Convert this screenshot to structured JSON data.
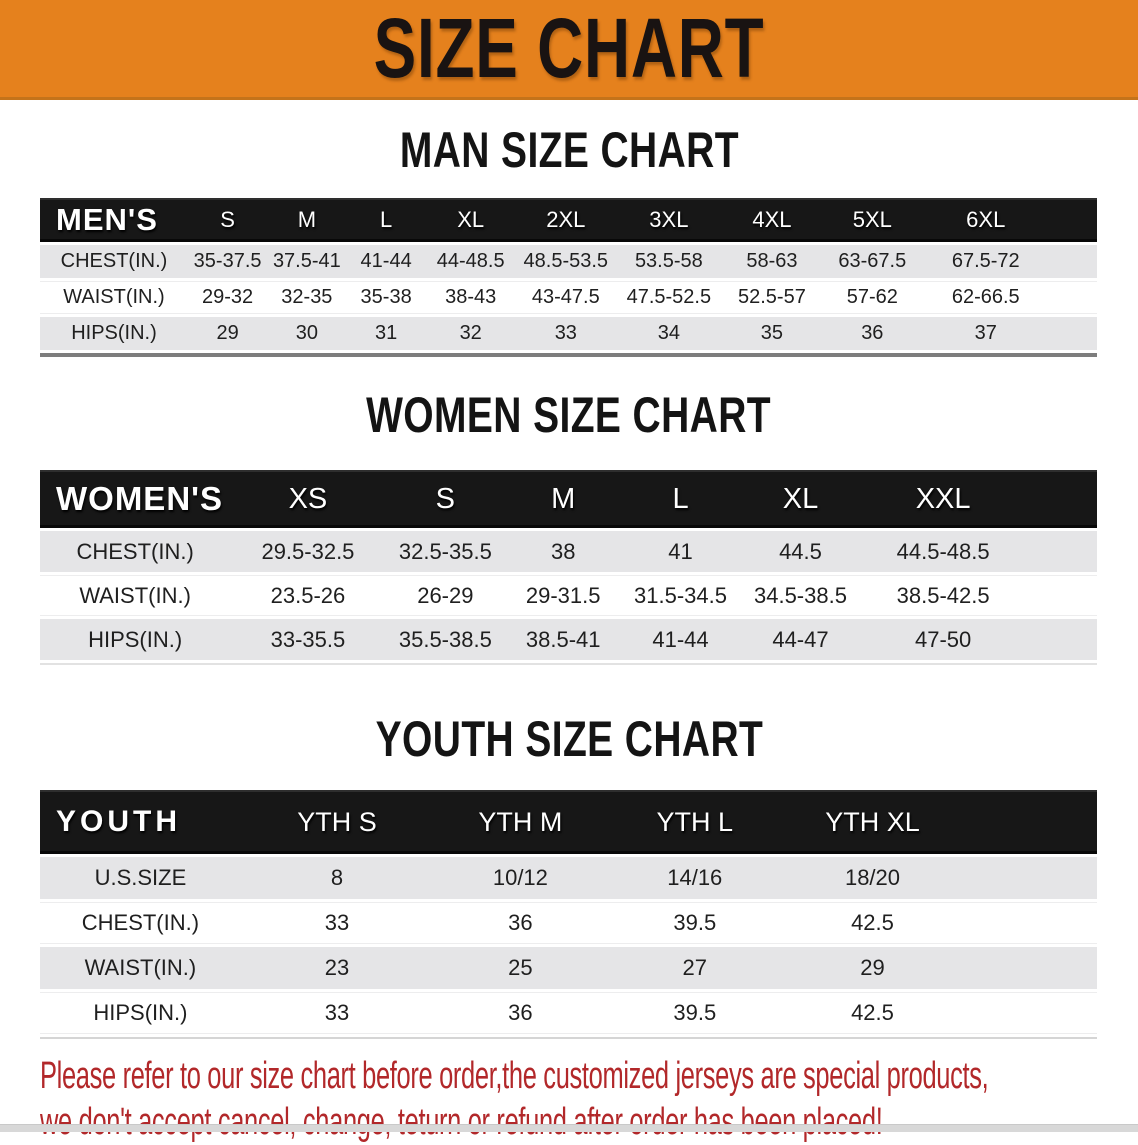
{
  "banner": {
    "title": "SIZE CHART",
    "bg_color": "#e5811d",
    "text_color": "#191312"
  },
  "sections": {
    "men_title": "MAN SIZE CHART",
    "women_title": "WOMEN SIZE CHART",
    "youth_title": "YOUTH SIZE CHART"
  },
  "colors": {
    "header_bar": "#171717",
    "header_text": "#ffffff",
    "row_gray": "#e5e5e7",
    "row_white": "#ffffff",
    "disclaimer_red": "#b2282a"
  },
  "tables": {
    "men": {
      "label": "MEN'S",
      "columns": [
        "S",
        "M",
        "L",
        "XL",
        "2XL",
        "3XL",
        "4XL",
        "5XL",
        "6XL"
      ],
      "rows": [
        {
          "label": "CHEST(IN.)",
          "cells": [
            "35-37.5",
            "37.5-41",
            "41-44",
            "44-48.5",
            "48.5-53.5",
            "53.5-58",
            "58-63",
            "63-67.5",
            "67.5-72"
          ]
        },
        {
          "label": "WAIST(IN.)",
          "cells": [
            "29-32",
            "32-35",
            "35-38",
            "38-43",
            "43-47.5",
            "47.5-52.5",
            "52.5-57",
            "57-62",
            "62-66.5"
          ]
        },
        {
          "label": "HIPS(IN.)",
          "cells": [
            "29",
            "30",
            "31",
            "32",
            "33",
            "34",
            "35",
            "36",
            "37"
          ]
        }
      ]
    },
    "women": {
      "label": "WOMEN'S",
      "columns": [
        "XS",
        "S",
        "M",
        "L",
        "XL",
        "XXL"
      ],
      "rows": [
        {
          "label": "CHEST(IN.)",
          "cells": [
            "29.5-32.5",
            "32.5-35.5",
            "38",
            "41",
            "44.5",
            "44.5-48.5"
          ]
        },
        {
          "label": "WAIST(IN.)",
          "cells": [
            "23.5-26",
            "26-29",
            "29-31.5",
            "31.5-34.5",
            "34.5-38.5",
            "38.5-42.5"
          ]
        },
        {
          "label": "HIPS(IN.)",
          "cells": [
            "33-35.5",
            "35.5-38.5",
            "38.5-41",
            "41-44",
            "44-47",
            "47-50"
          ]
        }
      ]
    },
    "youth": {
      "label": "YOUTH",
      "columns": [
        "YTH S",
        "YTH M",
        "YTH L",
        "YTH XL"
      ],
      "rows": [
        {
          "label": "U.S.SIZE",
          "cells": [
            "8",
            "10/12",
            "14/16",
            "18/20"
          ]
        },
        {
          "label": "CHEST(IN.)",
          "cells": [
            "33",
            "36",
            "39.5",
            "42.5"
          ]
        },
        {
          "label": "WAIST(IN.)",
          "cells": [
            "23",
            "25",
            "27",
            "29"
          ]
        },
        {
          "label": "HIPS(IN.)",
          "cells": [
            "33",
            "36",
            "39.5",
            "42.5"
          ]
        }
      ]
    }
  },
  "footer": {
    "line1": "Please refer to our size chart before order,the customized jerseys are special products,",
    "line2": "we don't accept cancel, change, teturn or refund after order has been placed!"
  }
}
